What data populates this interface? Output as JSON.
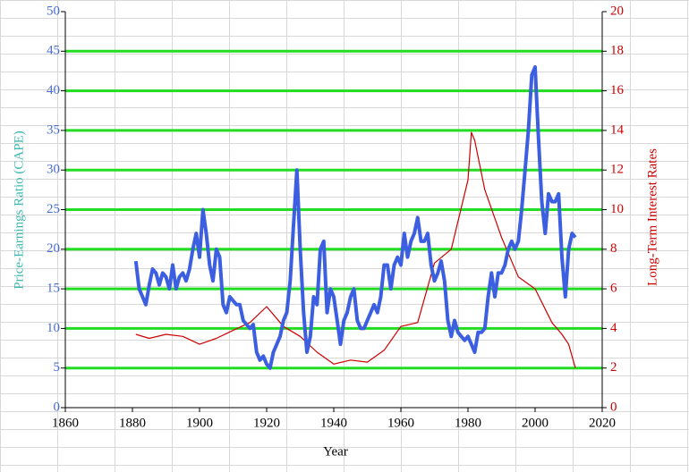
{
  "chart_data": {
    "type": "line",
    "xlabel": "Year",
    "ylabel": "Price-Earnings Ratio (CAPE)",
    "y2label": "Long-Term Interest Rates",
    "xlim": [
      1860,
      2020
    ],
    "xticks": [
      1860,
      1880,
      1900,
      1920,
      1940,
      1960,
      1980,
      2000,
      2020
    ],
    "ylim": [
      0,
      50
    ],
    "yticks": [
      0,
      5,
      10,
      15,
      20,
      25,
      30,
      35,
      40,
      45,
      50
    ],
    "y2lim": [
      0,
      20
    ],
    "y2ticks": [
      0,
      2,
      4,
      6,
      8,
      10,
      12,
      14,
      16,
      18,
      20
    ],
    "grid": true,
    "grid_color": "#22dd22",
    "series": [
      {
        "name": "Price-Earnings Ratio (CAPE)",
        "color": "#3b5fe0",
        "x": [
          1881,
          1882,
          1883,
          1884,
          1885,
          1886,
          1887,
          1888,
          1889,
          1890,
          1891,
          1892,
          1893,
          1894,
          1895,
          1896,
          1897,
          1898,
          1899,
          1900,
          1901,
          1902,
          1903,
          1904,
          1905,
          1906,
          1907,
          1908,
          1909,
          1910,
          1911,
          1912,
          1913,
          1914,
          1915,
          1916,
          1917,
          1918,
          1919,
          1920,
          1921,
          1922,
          1923,
          1924,
          1925,
          1926,
          1927,
          1928,
          1929,
          1930,
          1931,
          1932,
          1933,
          1934,
          1935,
          1936,
          1937,
          1938,
          1939,
          1940,
          1941,
          1942,
          1943,
          1944,
          1945,
          1946,
          1947,
          1948,
          1949,
          1950,
          1951,
          1952,
          1953,
          1954,
          1955,
          1956,
          1957,
          1958,
          1959,
          1960,
          1961,
          1962,
          1963,
          1964,
          1965,
          1966,
          1967,
          1968,
          1969,
          1970,
          1971,
          1972,
          1973,
          1974,
          1975,
          1976,
          1977,
          1978,
          1979,
          1980,
          1981,
          1982,
          1983,
          1984,
          1985,
          1986,
          1987,
          1988,
          1989,
          1990,
          1991,
          1992,
          1993,
          1994,
          1995,
          1996,
          1997,
          1998,
          1999,
          2000,
          2001,
          2002,
          2003,
          2004,
          2005,
          2006,
          2007,
          2008,
          2009,
          2010,
          2011,
          2012
        ],
        "values": [
          18.5,
          15,
          14,
          13,
          15.5,
          17.5,
          17,
          15.5,
          17,
          16.5,
          15,
          18,
          15,
          16.5,
          17,
          16,
          17.5,
          20,
          22,
          19,
          25,
          22,
          18,
          16,
          20,
          19,
          13,
          12,
          14,
          13.5,
          13,
          13,
          11,
          10.5,
          10,
          10.5,
          7,
          6,
          6.5,
          5.5,
          5,
          7,
          8,
          9,
          11,
          12,
          16,
          23,
          30,
          20,
          12,
          7,
          9,
          14,
          13,
          20,
          21,
          12,
          15,
          14,
          11,
          8,
          11,
          12,
          14,
          15,
          11,
          10,
          10,
          11,
          12,
          13,
          12,
          14,
          18,
          18,
          15,
          18,
          19,
          18,
          22,
          19,
          21,
          22,
          24,
          21,
          21,
          22,
          18,
          16,
          17,
          18.5,
          16,
          11,
          9,
          11,
          9.5,
          9,
          8.5,
          9,
          8,
          7,
          9.5,
          9.5,
          10,
          14,
          17,
          14,
          17,
          17,
          18,
          20,
          21,
          20,
          21,
          25,
          30,
          35,
          42,
          43,
          34,
          26,
          22,
          27,
          26,
          26,
          27,
          19,
          14,
          20,
          22,
          21.5
        ]
      },
      {
        "name": "Long-Term Interest Rates",
        "color": "#cc0000",
        "axis": "y2",
        "x": [
          1881,
          1885,
          1890,
          1895,
          1900,
          1905,
          1910,
          1915,
          1920,
          1925,
          1930,
          1935,
          1940,
          1945,
          1950,
          1955,
          1960,
          1965,
          1970,
          1975,
          1980,
          1981,
          1982,
          1985,
          1990,
          1995,
          2000,
          2005,
          2008,
          2010,
          2012
        ],
        "values": [
          3.7,
          3.5,
          3.7,
          3.6,
          3.2,
          3.5,
          3.9,
          4.3,
          5.1,
          4.1,
          3.6,
          2.8,
          2.2,
          2.4,
          2.3,
          2.9,
          4.1,
          4.3,
          7.3,
          8,
          11.5,
          13.9,
          13.5,
          11,
          8.6,
          6.6,
          6,
          4.3,
          3.7,
          3.2,
          2
        ]
      }
    ]
  }
}
